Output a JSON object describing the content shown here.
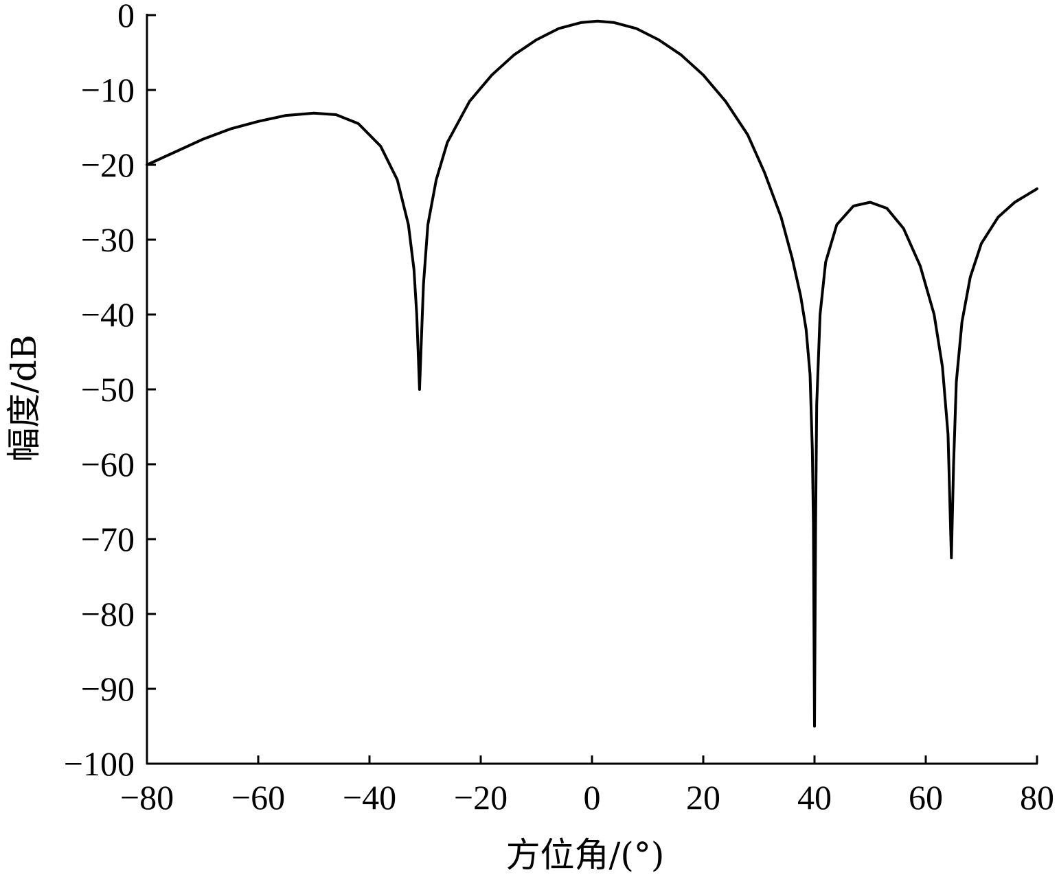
{
  "chart_data": {
    "type": "line",
    "xlabel": "方位角/(°)",
    "ylabel": "幅度/dB",
    "xlim": [
      -80,
      80
    ],
    "ylim": [
      -100,
      0
    ],
    "x_ticks": [
      "−80",
      "−60",
      "−40",
      "−20",
      "0",
      "20",
      "40",
      "60",
      "80"
    ],
    "y_ticks": [
      "0",
      "−10",
      "−20",
      "−30",
      "−40",
      "−50",
      "−60",
      "−70",
      "−80",
      "−90",
      "−100"
    ],
    "grid": false,
    "line_color": "#000000",
    "series": [
      {
        "points": [
          [
            -80,
            -20.0
          ],
          [
            -75,
            -18.3
          ],
          [
            -70,
            -16.6
          ],
          [
            -65,
            -15.2
          ],
          [
            -60,
            -14.2
          ],
          [
            -55,
            -13.4
          ],
          [
            -50,
            -13.1
          ],
          [
            -46,
            -13.3
          ],
          [
            -42,
            -14.5
          ],
          [
            -38,
            -17.5
          ],
          [
            -35,
            -22.0
          ],
          [
            -33,
            -28.0
          ],
          [
            -32,
            -34.0
          ],
          [
            -31.5,
            -40.0
          ],
          [
            -31.2,
            -46.0
          ],
          [
            -31,
            -50.0
          ],
          [
            -30.7,
            -44.0
          ],
          [
            -30.3,
            -36.0
          ],
          [
            -29.5,
            -28.0
          ],
          [
            -28,
            -22.0
          ],
          [
            -26,
            -17.0
          ],
          [
            -22,
            -11.5
          ],
          [
            -18,
            -8.0
          ],
          [
            -14,
            -5.3
          ],
          [
            -10,
            -3.3
          ],
          [
            -6,
            -1.8
          ],
          [
            -2,
            -1.0
          ],
          [
            1,
            -0.8
          ],
          [
            4,
            -1.0
          ],
          [
            8,
            -1.8
          ],
          [
            12,
            -3.3
          ],
          [
            16,
            -5.3
          ],
          [
            20,
            -8.0
          ],
          [
            24,
            -11.5
          ],
          [
            28,
            -16.0
          ],
          [
            31,
            -21.0
          ],
          [
            34,
            -27.0
          ],
          [
            36,
            -32.5
          ],
          [
            37.5,
            -37.5
          ],
          [
            38.5,
            -42.0
          ],
          [
            39.2,
            -48.0
          ],
          [
            39.6,
            -58.0
          ],
          [
            39.8,
            -68.0
          ],
          [
            40,
            -95.0
          ],
          [
            40.2,
            -68.0
          ],
          [
            40.4,
            -52.0
          ],
          [
            41,
            -40.0
          ],
          [
            42,
            -33.0
          ],
          [
            44,
            -28.0
          ],
          [
            47,
            -25.5
          ],
          [
            50,
            -25.0
          ],
          [
            53,
            -25.8
          ],
          [
            56,
            -28.5
          ],
          [
            59,
            -33.5
          ],
          [
            61.5,
            -40.0
          ],
          [
            63,
            -47.0
          ],
          [
            64,
            -56.0
          ],
          [
            64.6,
            -72.5
          ],
          [
            65,
            -60.0
          ],
          [
            65.5,
            -49.0
          ],
          [
            66.5,
            -41.0
          ],
          [
            68,
            -35.0
          ],
          [
            70,
            -30.5
          ],
          [
            73,
            -27.0
          ],
          [
            76,
            -25.0
          ],
          [
            80,
            -23.2
          ]
        ]
      }
    ]
  }
}
